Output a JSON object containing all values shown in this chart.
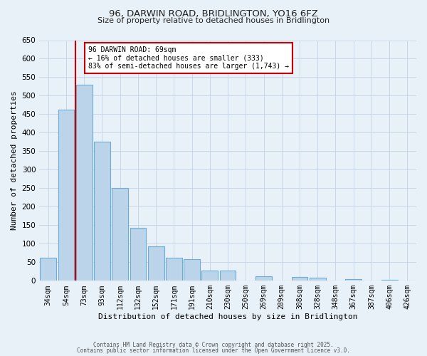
{
  "title": "96, DARWIN ROAD, BRIDLINGTON, YO16 6FZ",
  "subtitle": "Size of property relative to detached houses in Bridlington",
  "xlabel": "Distribution of detached houses by size in Bridlington",
  "ylabel": "Number of detached properties",
  "bin_labels": [
    "34sqm",
    "54sqm",
    "73sqm",
    "93sqm",
    "112sqm",
    "132sqm",
    "152sqm",
    "171sqm",
    "191sqm",
    "210sqm",
    "230sqm",
    "250sqm",
    "269sqm",
    "289sqm",
    "308sqm",
    "328sqm",
    "348sqm",
    "367sqm",
    "387sqm",
    "406sqm",
    "426sqm"
  ],
  "bar_values": [
    63,
    462,
    530,
    375,
    250,
    143,
    93,
    63,
    58,
    27,
    28,
    0,
    12,
    0,
    10,
    8,
    0,
    5,
    0,
    3,
    0
  ],
  "bar_color": "#bcd4ea",
  "bar_edge_color": "#6aaed6",
  "vline_color": "#cc0000",
  "annotation_text": "96 DARWIN ROAD: 69sqm\n← 16% of detached houses are smaller (333)\n83% of semi-detached houses are larger (1,743) →",
  "annotation_box_color": "#ffffff",
  "annotation_box_edge_color": "#cc0000",
  "ylim": [
    0,
    650
  ],
  "yticks": [
    0,
    50,
    100,
    150,
    200,
    250,
    300,
    350,
    400,
    450,
    500,
    550,
    600,
    650
  ],
  "grid_color": "#c8d8e8",
  "background_color": "#e8f0f8",
  "footer1": "Contains HM Land Registry data © Crown copyright and database right 2025.",
  "footer2": "Contains public sector information licensed under the Open Government Licence v3.0."
}
